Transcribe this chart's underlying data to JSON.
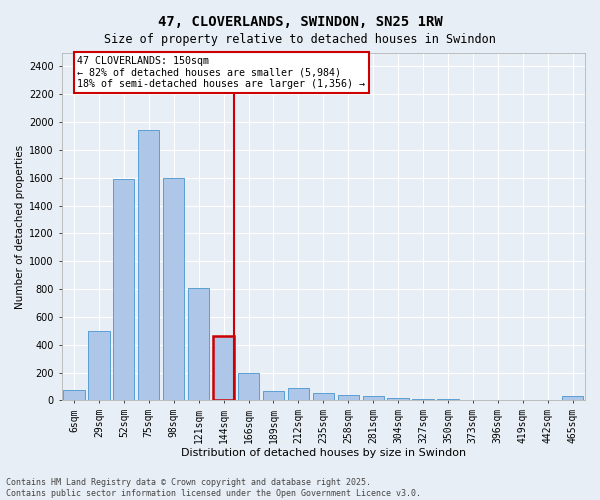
{
  "title": "47, CLOVERLANDS, SWINDON, SN25 1RW",
  "subtitle": "Size of property relative to detached houses in Swindon",
  "xlabel": "Distribution of detached houses by size in Swindon",
  "ylabel": "Number of detached properties",
  "categories": [
    "6sqm",
    "29sqm",
    "52sqm",
    "75sqm",
    "98sqm",
    "121sqm",
    "144sqm",
    "166sqm",
    "189sqm",
    "212sqm",
    "235sqm",
    "258sqm",
    "281sqm",
    "304sqm",
    "327sqm",
    "350sqm",
    "373sqm",
    "396sqm",
    "419sqm",
    "442sqm",
    "465sqm"
  ],
  "values": [
    75,
    500,
    1590,
    1940,
    1600,
    810,
    460,
    195,
    65,
    90,
    55,
    40,
    30,
    20,
    10,
    8,
    5,
    0,
    0,
    0,
    35
  ],
  "bar_color": "#aec6e8",
  "bar_edge_color": "#5a9fd4",
  "highlight_bar_index": 6,
  "highlight_bar_edge_color": "#cc0000",
  "vline_color": "#cc0000",
  "annotation_text": "47 CLOVERLANDS: 150sqm\n← 82% of detached houses are smaller (5,984)\n18% of semi-detached houses are larger (1,356) →",
  "annotation_box_color": "#ffffff",
  "annotation_box_edge_color": "#cc0000",
  "ylim": [
    0,
    2500
  ],
  "yticks": [
    0,
    200,
    400,
    600,
    800,
    1000,
    1200,
    1400,
    1600,
    1800,
    2000,
    2200,
    2400
  ],
  "background_color": "#e8eef5",
  "footer": "Contains HM Land Registry data © Crown copyright and database right 2025.\nContains public sector information licensed under the Open Government Licence v3.0."
}
